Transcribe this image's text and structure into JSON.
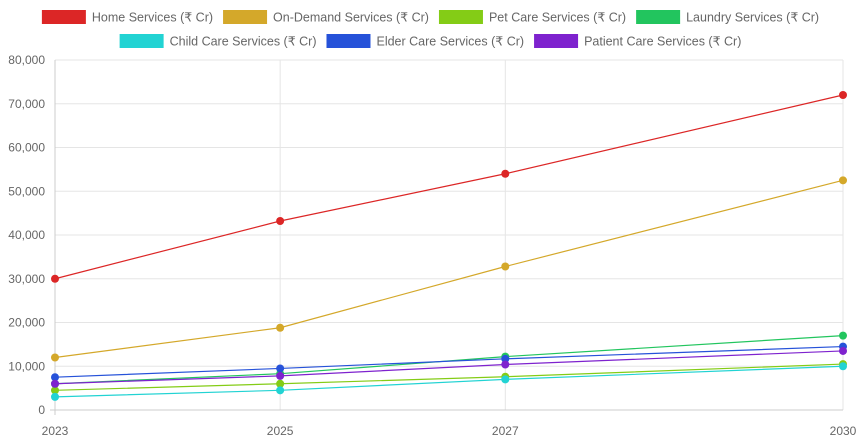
{
  "chart_data": {
    "type": "line",
    "x": [
      2023,
      2025,
      2027,
      2030
    ],
    "x_ticks": [
      "2023",
      "2025",
      "2027",
      "2030"
    ],
    "ylim": [
      0,
      80000
    ],
    "y_ticks": [
      "0",
      "10,000",
      "20,000",
      "30,000",
      "40,000",
      "50,000",
      "60,000",
      "70,000",
      "80,000"
    ],
    "grid": true,
    "legend_position": "top",
    "series": [
      {
        "name": "Home Services (₹ Cr)",
        "color": "#dc2626",
        "values": [
          30000,
          43200,
          54000,
          72000
        ]
      },
      {
        "name": "On-Demand Services (₹ Cr)",
        "color": "#d4a82a",
        "values": [
          12000,
          18800,
          32800,
          52500
        ]
      },
      {
        "name": "Pet Care Services (₹ Cr)",
        "color": "#84cc16",
        "values": [
          4500,
          6000,
          7600,
          10500
        ]
      },
      {
        "name": "Laundry Services (₹ Cr)",
        "color": "#22c55e",
        "values": [
          6000,
          8300,
          12200,
          17000
        ]
      },
      {
        "name": "Child Care Services (₹ Cr)",
        "color": "#22d3d3",
        "values": [
          3000,
          4500,
          7000,
          10000
        ]
      },
      {
        "name": "Elder Care Services (₹ Cr)",
        "color": "#2652d9",
        "values": [
          7500,
          9500,
          11700,
          14500
        ]
      },
      {
        "name": "Patient Care Services (₹ Cr)",
        "color": "#7e22ce",
        "values": [
          6000,
          7800,
          10400,
          13500
        ]
      }
    ]
  }
}
